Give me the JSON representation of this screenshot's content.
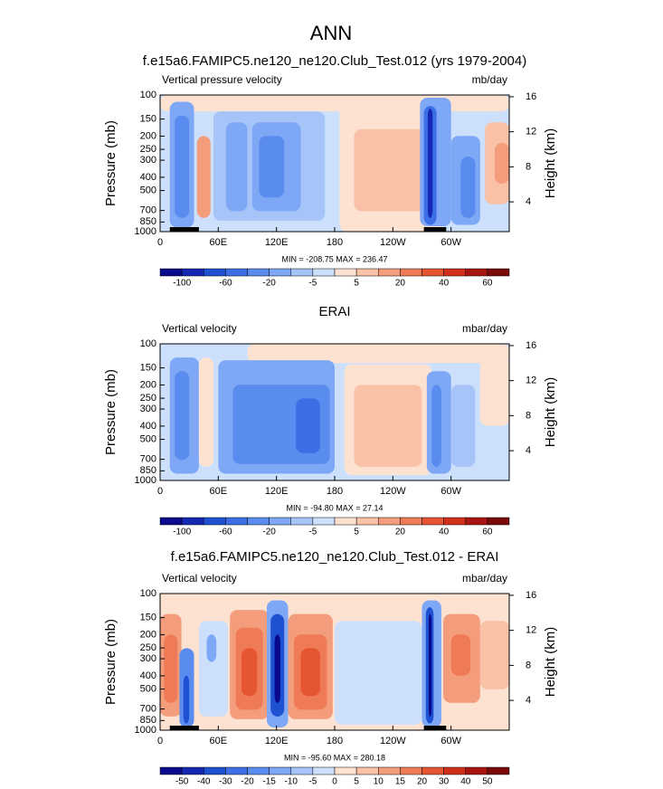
{
  "title": "ANN",
  "colorbar_colors": [
    "#0a0a8c",
    "#1428b4",
    "#1e50d2",
    "#3c6ee6",
    "#5a8cf0",
    "#7ea8f5",
    "#a6c4f8",
    "#cde0fb",
    "#fde2d2",
    "#f9c1a6",
    "#f49d7c",
    "#ef7a56",
    "#e65532",
    "#d02f1a",
    "#a81510",
    "#7a0a0a"
  ],
  "panels": [
    {
      "title": "f.e15a6.FAMIPC5.ne120_ne120.Club_Test.012 (yrs 1979-2004)",
      "left_title": "Vertical pressure velocity",
      "right_title": "mb/day",
      "y_label": "Pressure (mb)",
      "y2_label": "Height (km)",
      "ylim": [
        1000,
        100
      ],
      "log_y": true,
      "yticks": [
        100,
        150,
        200,
        250,
        300,
        400,
        500,
        700,
        850,
        1000
      ],
      "y2lim": [
        0.6,
        16.2
      ],
      "y2ticks": [
        4,
        8,
        12,
        16
      ],
      "xlim": [
        0,
        360
      ],
      "xticks": [
        0,
        {
          "value": 60,
          "label": "60E"
        },
        {
          "value": 120,
          "label": "120E"
        },
        180,
        {
          "value": 240,
          "label": "120W"
        },
        {
          "value": 300,
          "label": "60W"
        }
      ],
      "stats": "MIN = -208.75  MAX = 236.47",
      "colorbar_labels": [
        "-100",
        "-60",
        "-20",
        "-5",
        "5",
        "20",
        "40",
        "60"
      ]
    },
    {
      "title": "ERAI",
      "left_title": "Vertical velocity",
      "right_title": "mbar/day",
      "y_label": "Pressure (mb)",
      "y2_label": "Height (km)",
      "ylim": [
        1000,
        100
      ],
      "log_y": true,
      "yticks": [
        100,
        150,
        200,
        250,
        300,
        400,
        500,
        700,
        850,
        1000
      ],
      "y2lim": [
        0.6,
        16.2
      ],
      "y2ticks": [
        4,
        8,
        12,
        16
      ],
      "xlim": [
        0,
        360
      ],
      "xticks": [
        0,
        {
          "value": 60,
          "label": "60E"
        },
        {
          "value": 120,
          "label": "120E"
        },
        180,
        {
          "value": 240,
          "label": "120W"
        },
        {
          "value": 300,
          "label": "60W"
        }
      ],
      "stats": "MIN = -94.80  MAX = 27.14",
      "colorbar_labels": [
        "-100",
        "-60",
        "-20",
        "-5",
        "5",
        "20",
        "40",
        "60"
      ]
    },
    {
      "title": "f.e15a6.FAMIPC5.ne120_ne120.Club_Test.012 - ERAI",
      "left_title": "Vertical velocity",
      "right_title": "mbar/day",
      "y_label": "Pressure (mb)",
      "y2_label": "Height (km)",
      "ylim": [
        1000,
        100
      ],
      "log_y": true,
      "yticks": [
        100,
        150,
        200,
        250,
        300,
        400,
        500,
        700,
        850,
        1000
      ],
      "y2lim": [
        0.6,
        16.2
      ],
      "y2ticks": [
        4,
        8,
        12,
        16
      ],
      "xlim": [
        0,
        360
      ],
      "xticks": [
        0,
        {
          "value": 60,
          "label": "60E"
        },
        {
          "value": 120,
          "label": "120E"
        },
        180,
        {
          "value": 240,
          "label": "120W"
        },
        {
          "value": 300,
          "label": "60W"
        }
      ],
      "stats": "MIN = -95.60  MAX = 280.18",
      "colorbar_labels": [
        "-50",
        "-40",
        "-30",
        "-20",
        "-15",
        "-10",
        "-5",
        "0",
        "5",
        "10",
        "15",
        "20",
        "30",
        "40",
        "50"
      ]
    }
  ]
}
